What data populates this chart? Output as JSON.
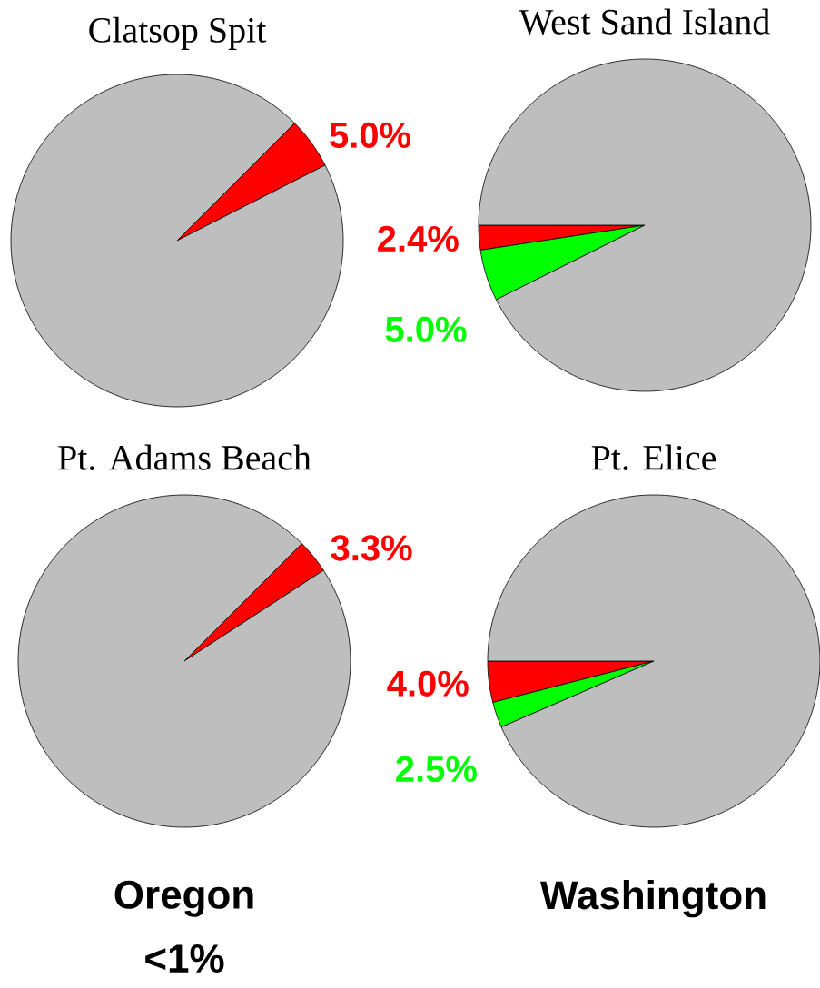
{
  "chart_data": [
    {
      "type": "pie",
      "title": "Clatsop Spit",
      "categories": [
        null,
        null
      ],
      "values": [
        5.0,
        95.0
      ],
      "colors": [
        "#ff0000",
        "#bebebe"
      ],
      "value_labels": [
        "5.0%",
        null
      ]
    },
    {
      "type": "pie",
      "title": "West Sand Island",
      "categories": [
        null,
        null,
        null
      ],
      "values": [
        2.4,
        5.0,
        92.6
      ],
      "colors": [
        "#ff0000",
        "#00ff00",
        "#bebebe"
      ],
      "value_labels": [
        "2.4%",
        "5.0%",
        null
      ]
    },
    {
      "type": "pie",
      "title": "Pt. Adams Beach",
      "categories": [
        null,
        null
      ],
      "values": [
        3.3,
        96.7
      ],
      "colors": [
        "#ff0000",
        "#bebebe"
      ],
      "value_labels": [
        "3.3%",
        null
      ],
      "annotations": [
        "Oregon",
        "<1%"
      ]
    },
    {
      "type": "pie",
      "title": "Pt. Elice",
      "categories": [
        null,
        null,
        null
      ],
      "values": [
        4.0,
        2.5,
        93.5
      ],
      "colors": [
        "#ff0000",
        "#00ff00",
        "#bebebe"
      ],
      "value_labels": [
        "4.0%",
        "2.5%",
        null
      ],
      "annotations": [
        "Washington"
      ]
    }
  ]
}
